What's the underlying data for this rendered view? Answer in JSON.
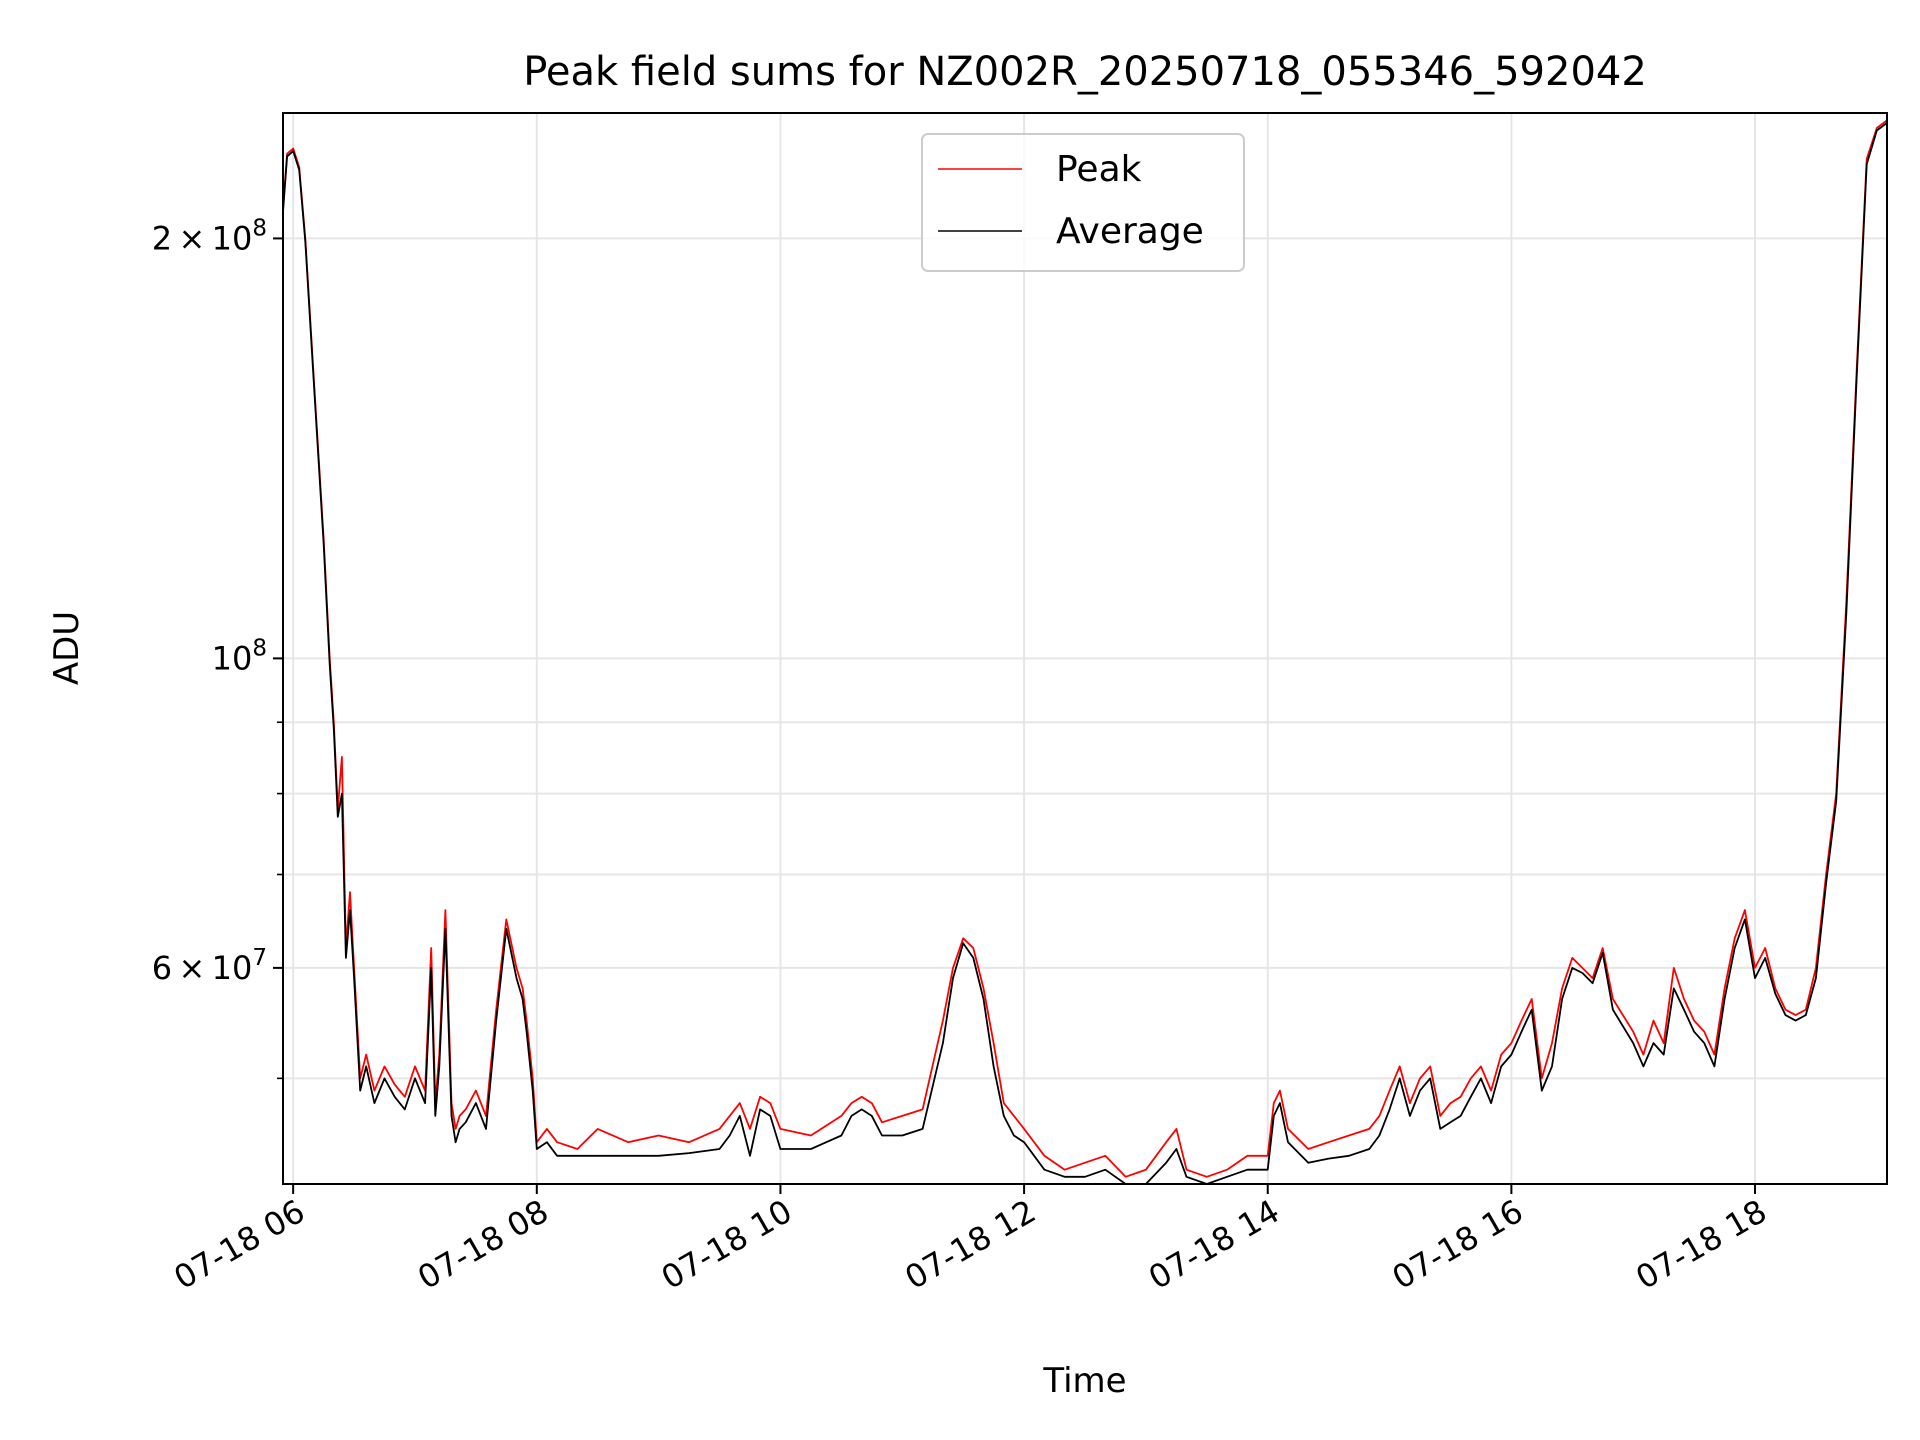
{
  "chart_data": {
    "type": "line",
    "title": "Peak field sums for NZ002R_20250718_055346_592042",
    "xlabel": "Time",
    "ylabel": "ADU",
    "x_range": [
      "2025-07-18 05:55",
      "2025-07-18 19:05"
    ],
    "ylim": [
      42000000,
      246000000
    ],
    "yscale": "log",
    "grid": true,
    "legend_position": "top-center",
    "x_tick_labels": [
      "07-18 06",
      "07-18 08",
      "07-18 10",
      "07-18 12",
      "07-18 14",
      "07-18 16",
      "07-18 18"
    ],
    "x_ticks": [
      "2025-07-18 06:00",
      "2025-07-18 08:00",
      "2025-07-18 10:00",
      "2025-07-18 12:00",
      "2025-07-18 14:00",
      "2025-07-18 16:00",
      "2025-07-18 18:00"
    ],
    "y_tick_labels": [
      {
        "value": 200000000,
        "mantissa": "2",
        "exponent": "8"
      },
      {
        "value": 100000000,
        "mantissa": "",
        "exponent": "8"
      },
      {
        "value": 60000000,
        "mantissa": "6",
        "exponent": "7"
      }
    ],
    "y_minor_ticks": [
      50000000,
      70000000,
      80000000,
      90000000
    ],
    "series": [
      {
        "name": "Peak",
        "color": "#ff0000",
        "x": [
          "05:55",
          "05:57",
          "06:00",
          "06:03",
          "06:06",
          "06:10",
          "06:15",
          "06:18",
          "06:20",
          "06:22",
          "06:24",
          "06:26",
          "06:28",
          "06:30",
          "06:33",
          "06:36",
          "06:40",
          "06:45",
          "06:50",
          "06:55",
          "07:00",
          "07:05",
          "07:08",
          "07:10",
          "07:12",
          "07:15",
          "07:18",
          "07:20",
          "07:22",
          "07:25",
          "07:30",
          "07:35",
          "07:40",
          "07:45",
          "07:50",
          "07:53",
          "07:55",
          "07:58",
          "08:00",
          "08:05",
          "08:10",
          "08:20",
          "08:30",
          "08:45",
          "09:00",
          "09:15",
          "09:30",
          "09:35",
          "09:40",
          "09:45",
          "09:50",
          "09:55",
          "10:00",
          "10:15",
          "10:30",
          "10:35",
          "10:40",
          "10:45",
          "10:50",
          "11:00",
          "11:10",
          "11:20",
          "11:25",
          "11:30",
          "11:35",
          "11:40",
          "11:45",
          "11:50",
          "11:55",
          "12:00",
          "12:10",
          "12:20",
          "12:30",
          "12:40",
          "12:50",
          "13:00",
          "13:10",
          "13:15",
          "13:20",
          "13:30",
          "13:40",
          "13:50",
          "14:00",
          "14:03",
          "14:06",
          "14:10",
          "14:20",
          "14:30",
          "14:40",
          "14:50",
          "14:55",
          "15:00",
          "15:05",
          "15:10",
          "15:15",
          "15:20",
          "15:25",
          "15:30",
          "15:35",
          "15:40",
          "15:45",
          "15:50",
          "15:55",
          "16:00",
          "16:05",
          "16:10",
          "16:15",
          "16:20",
          "16:25",
          "16:30",
          "16:35",
          "16:40",
          "16:45",
          "16:50",
          "17:00",
          "17:05",
          "17:10",
          "17:15",
          "17:20",
          "17:25",
          "17:30",
          "17:35",
          "17:40",
          "17:45",
          "17:50",
          "17:55",
          "18:00",
          "18:05",
          "18:10",
          "18:15",
          "18:20",
          "18:25",
          "18:30",
          "18:35",
          "18:40",
          "18:45",
          "18:50",
          "18:55",
          "19:00",
          "19:05"
        ],
        "y": [
          210000000,
          230000000,
          232000000,
          225000000,
          200000000,
          160000000,
          122000000,
          100000000,
          90000000,
          78000000,
          85000000,
          62000000,
          68000000,
          60000000,
          50000000,
          52000000,
          49000000,
          51000000,
          49500000,
          48500000,
          51000000,
          49000000,
          62000000,
          48000000,
          52000000,
          66000000,
          48000000,
          46000000,
          47000000,
          47500000,
          49000000,
          47000000,
          56000000,
          65000000,
          60000000,
          58000000,
          55000000,
          50000000,
          45000000,
          46000000,
          45000000,
          44500000,
          46000000,
          45000000,
          45500000,
          45000000,
          46000000,
          47000000,
          48000000,
          46000000,
          48500000,
          48000000,
          46000000,
          45500000,
          47000000,
          48000000,
          48500000,
          48000000,
          46500000,
          47000000,
          47500000,
          55000000,
          60000000,
          63000000,
          62000000,
          58000000,
          53000000,
          48000000,
          47000000,
          46000000,
          44000000,
          43000000,
          43500000,
          44000000,
          42500000,
          43000000,
          45000000,
          46000000,
          43000000,
          42500000,
          43000000,
          44000000,
          44000000,
          48000000,
          49000000,
          46000000,
          44500000,
          45000000,
          45500000,
          46000000,
          47000000,
          49000000,
          51000000,
          48000000,
          50000000,
          51000000,
          47000000,
          48000000,
          48500000,
          50000000,
          51000000,
          49000000,
          52000000,
          53000000,
          55000000,
          57000000,
          50000000,
          53000000,
          58000000,
          61000000,
          60000000,
          59000000,
          62000000,
          57000000,
          54000000,
          52000000,
          55000000,
          53000000,
          60000000,
          57000000,
          55000000,
          54000000,
          52000000,
          58000000,
          63000000,
          66000000,
          60000000,
          62000000,
          58000000,
          56000000,
          55500000,
          56000000,
          60000000,
          70000000,
          80000000,
          110000000,
          160000000,
          228000000,
          240000000,
          243000000
        ]
      },
      {
        "name": "Average",
        "color": "#000000",
        "x": [
          "05:55",
          "05:57",
          "06:00",
          "06:03",
          "06:06",
          "06:10",
          "06:15",
          "06:18",
          "06:20",
          "06:22",
          "06:24",
          "06:26",
          "06:28",
          "06:30",
          "06:33",
          "06:36",
          "06:40",
          "06:45",
          "06:50",
          "06:55",
          "07:00",
          "07:05",
          "07:08",
          "07:10",
          "07:12",
          "07:15",
          "07:18",
          "07:20",
          "07:22",
          "07:25",
          "07:30",
          "07:35",
          "07:40",
          "07:45",
          "07:50",
          "07:53",
          "07:55",
          "07:58",
          "08:00",
          "08:05",
          "08:10",
          "08:20",
          "08:30",
          "08:45",
          "09:00",
          "09:15",
          "09:30",
          "09:35",
          "09:40",
          "09:45",
          "09:50",
          "09:55",
          "10:00",
          "10:15",
          "10:30",
          "10:35",
          "10:40",
          "10:45",
          "10:50",
          "11:00",
          "11:10",
          "11:20",
          "11:25",
          "11:30",
          "11:35",
          "11:40",
          "11:45",
          "11:50",
          "11:55",
          "12:00",
          "12:10",
          "12:20",
          "12:30",
          "12:40",
          "12:50",
          "13:00",
          "13:10",
          "13:15",
          "13:20",
          "13:30",
          "13:40",
          "13:50",
          "14:00",
          "14:03",
          "14:06",
          "14:10",
          "14:20",
          "14:30",
          "14:40",
          "14:50",
          "14:55",
          "15:00",
          "15:05",
          "15:10",
          "15:15",
          "15:20",
          "15:25",
          "15:30",
          "15:35",
          "15:40",
          "15:45",
          "15:50",
          "15:55",
          "16:00",
          "16:05",
          "16:10",
          "16:15",
          "16:20",
          "16:25",
          "16:30",
          "16:35",
          "16:40",
          "16:45",
          "16:50",
          "17:00",
          "17:05",
          "17:10",
          "17:15",
          "17:20",
          "17:25",
          "17:30",
          "17:35",
          "17:40",
          "17:45",
          "17:50",
          "17:55",
          "18:00",
          "18:05",
          "18:10",
          "18:15",
          "18:20",
          "18:25",
          "18:30",
          "18:35",
          "18:40",
          "18:45",
          "18:50",
          "18:55",
          "19:00",
          "19:05"
        ],
        "y": [
          209000000,
          229000000,
          231000000,
          224000000,
          199000000,
          159000000,
          121000000,
          99000000,
          89000000,
          77000000,
          80000000,
          61000000,
          66000000,
          59000000,
          49000000,
          51000000,
          48000000,
          50000000,
          48500000,
          47500000,
          50000000,
          48000000,
          60000000,
          47000000,
          51000000,
          64000000,
          47000000,
          45000000,
          46000000,
          46500000,
          48000000,
          46000000,
          55000000,
          64000000,
          59000000,
          57000000,
          54000000,
          49000000,
          44500000,
          45000000,
          44000000,
          44000000,
          44000000,
          44000000,
          44000000,
          44200000,
          44500000,
          45500000,
          47000000,
          44000000,
          47500000,
          47000000,
          44500000,
          44500000,
          45500000,
          47000000,
          47500000,
          47000000,
          45500000,
          45500000,
          46000000,
          53000000,
          59000000,
          62500000,
          61000000,
          57000000,
          51000000,
          47000000,
          45500000,
          45000000,
          43000000,
          42500000,
          42500000,
          43000000,
          42000000,
          42000000,
          43500000,
          44500000,
          42500000,
          42000000,
          42500000,
          43000000,
          43000000,
          47000000,
          48000000,
          45000000,
          43500000,
          43800000,
          44000000,
          44500000,
          45500000,
          47500000,
          50000000,
          47000000,
          49000000,
          50000000,
          46000000,
          46500000,
          47000000,
          48500000,
          50000000,
          48000000,
          51000000,
          52000000,
          54000000,
          56000000,
          49000000,
          51000000,
          57000000,
          60000000,
          59500000,
          58500000,
          61500000,
          56000000,
          53000000,
          51000000,
          53000000,
          52000000,
          58000000,
          56000000,
          54000000,
          53000000,
          51000000,
          57000000,
          62000000,
          65000000,
          59000000,
          61000000,
          57500000,
          55500000,
          55000000,
          55500000,
          59000000,
          69000000,
          79000000,
          108000000,
          158000000,
          226000000,
          239000000,
          242000000
        ]
      }
    ]
  }
}
